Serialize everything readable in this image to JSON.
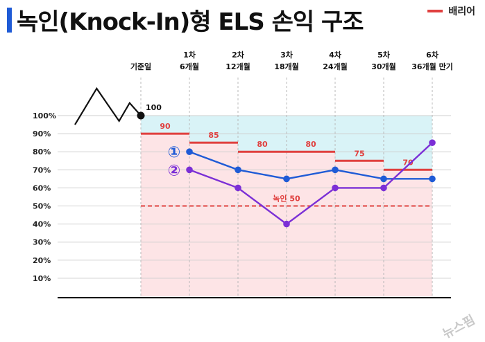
{
  "title": "녹인(Knock-In)형 ELS 손익 구조",
  "legend": {
    "barrier_label": "배리어"
  },
  "watermark": "뉴스핌",
  "colors": {
    "accent_blue": "#1f5bd6",
    "barrier_red": "#e0403f",
    "line_blue": "#1f5bd6",
    "line_purple": "#7b2fd6",
    "upper_zone": "#d9f3f7",
    "lower_zone": "#fde4e6"
  },
  "chart_data": {
    "type": "line",
    "title": "녹인(Knock-In)형 ELS 손익 구조",
    "ylim": [
      0,
      100
    ],
    "y_ticks": [
      "10%",
      "20%",
      "30%",
      "40%",
      "50%",
      "60%",
      "70%",
      "80%",
      "90%",
      "100%"
    ],
    "start_label": "기준일",
    "start_value": 100,
    "start_value_label": "100",
    "periods": [
      {
        "line1": "1차",
        "line2": "6개월"
      },
      {
        "line1": "2차",
        "line2": "12개월"
      },
      {
        "line1": "3차",
        "line2": "18개월"
      },
      {
        "line1": "4차",
        "line2": "24개월"
      },
      {
        "line1": "5차",
        "line2": "30개월"
      },
      {
        "line1": "6차",
        "line2": "36개월 만기"
      }
    ],
    "barriers": [
      {
        "value": 90,
        "label": "90"
      },
      {
        "value": 85,
        "label": "85"
      },
      {
        "value": 80,
        "label": "80"
      },
      {
        "value": 80,
        "label": "80"
      },
      {
        "value": 75,
        "label": "75"
      },
      {
        "value": 70,
        "label": "70"
      }
    ],
    "knock_in": {
      "value": 50,
      "label": "녹인 50"
    },
    "series": [
      {
        "marker": "①",
        "color": "#1f5bd6",
        "values": [
          80,
          70,
          65,
          70,
          65,
          65
        ]
      },
      {
        "marker": "②",
        "color": "#7b2fd6",
        "values": [
          70,
          60,
          40,
          60,
          60,
          85
        ]
      }
    ],
    "pre_start_path": [
      [
        0,
        95
      ],
      [
        0.33,
        115
      ],
      [
        0.67,
        97
      ],
      [
        0.83,
        107
      ],
      [
        1,
        100
      ]
    ]
  }
}
